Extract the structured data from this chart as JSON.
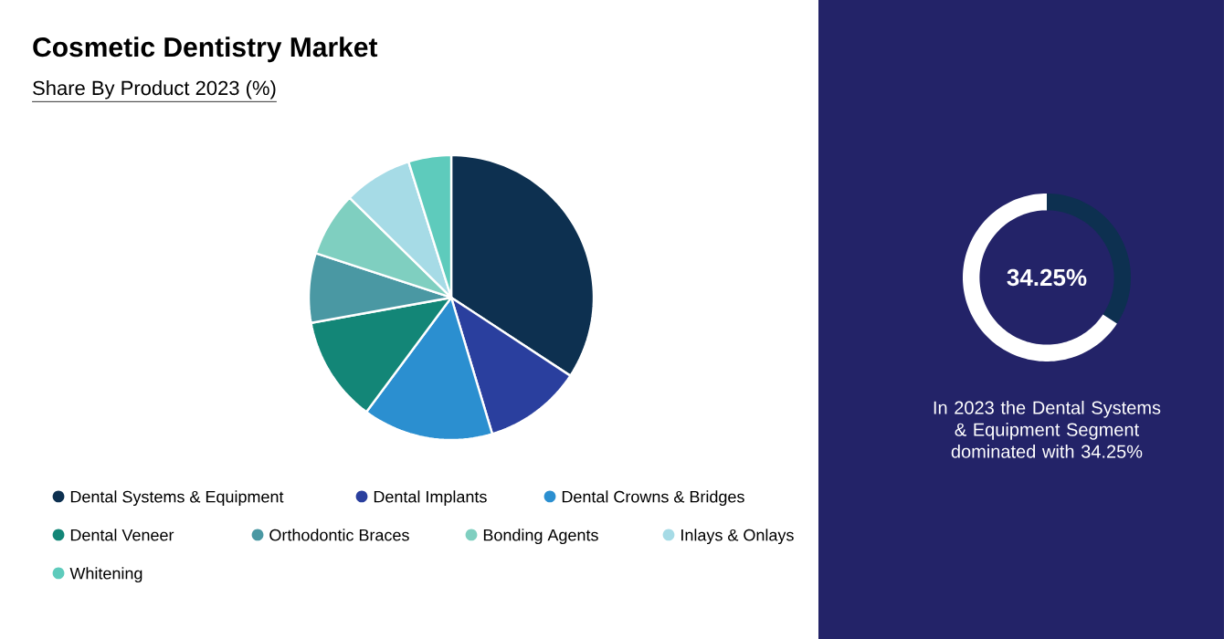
{
  "chart_data": [
    {
      "type": "pie",
      "title": "Cosmetic Dentistry Market",
      "subtitle": "Share By Product 2023 (%)",
      "categories": [
        "Dental Systems & Equipment",
        "Dental Implants",
        "Dental Crowns & Bridges",
        "Dental Veneer",
        "Orthodontic Braces",
        "Bonding Agents",
        "Inlays & Onlays",
        "Whitening"
      ],
      "values": [
        34.25,
        11.1,
        14.8,
        12,
        7.9,
        7.3,
        7.8,
        4.85
      ],
      "colors": [
        "#0d3050",
        "#2a3f9e",
        "#2b8fd0",
        "#138677",
        "#4a98a3",
        "#7fcfc0",
        "#a6dbe6",
        "#5ecbbc"
      ],
      "legend": "bottom"
    },
    {
      "type": "donut",
      "categories": [
        null,
        null
      ],
      "values": [
        34.25,
        65.75
      ],
      "colors": [
        "#0d3050",
        "#ffffff"
      ],
      "annotations": [
        "34.25%",
        "In 2023 the Dental Systems & Equipment Segment dominated with 34.25%"
      ]
    }
  ]
}
